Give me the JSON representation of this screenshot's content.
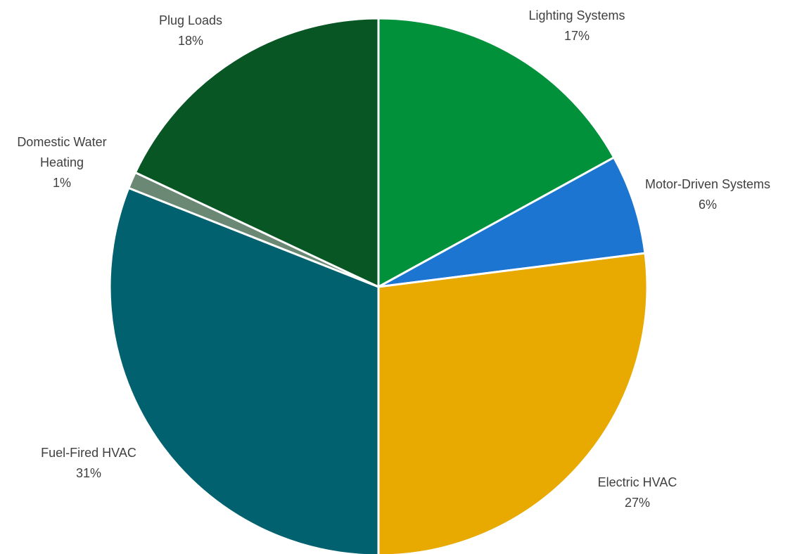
{
  "chart_data": {
    "type": "pie",
    "title": "",
    "start_angle_deg": 0,
    "direction": "clockwise",
    "slices": [
      {
        "label": "Lighting Systems",
        "value": 17,
        "value_label": "17%",
        "color": "#00913A"
      },
      {
        "label": "Motor-Driven Systems",
        "value": 6,
        "value_label": "6%",
        "color": "#1C75D1"
      },
      {
        "label": "Electric HVAC",
        "value": 27,
        "value_label": "27%",
        "color": "#E8A900"
      },
      {
        "label": "Fuel-Fired HVAC",
        "value": 31,
        "value_label": "31%",
        "color": "#02616F"
      },
      {
        "label": "Domestic Water Heating",
        "label_lines": [
          "Domestic Water",
          "Heating"
        ],
        "value": 1,
        "value_label": "1%",
        "color": "#6A8873"
      },
      {
        "label": "Plug Loads",
        "value": 18,
        "value_label": "18%",
        "color": "#075624"
      }
    ]
  }
}
